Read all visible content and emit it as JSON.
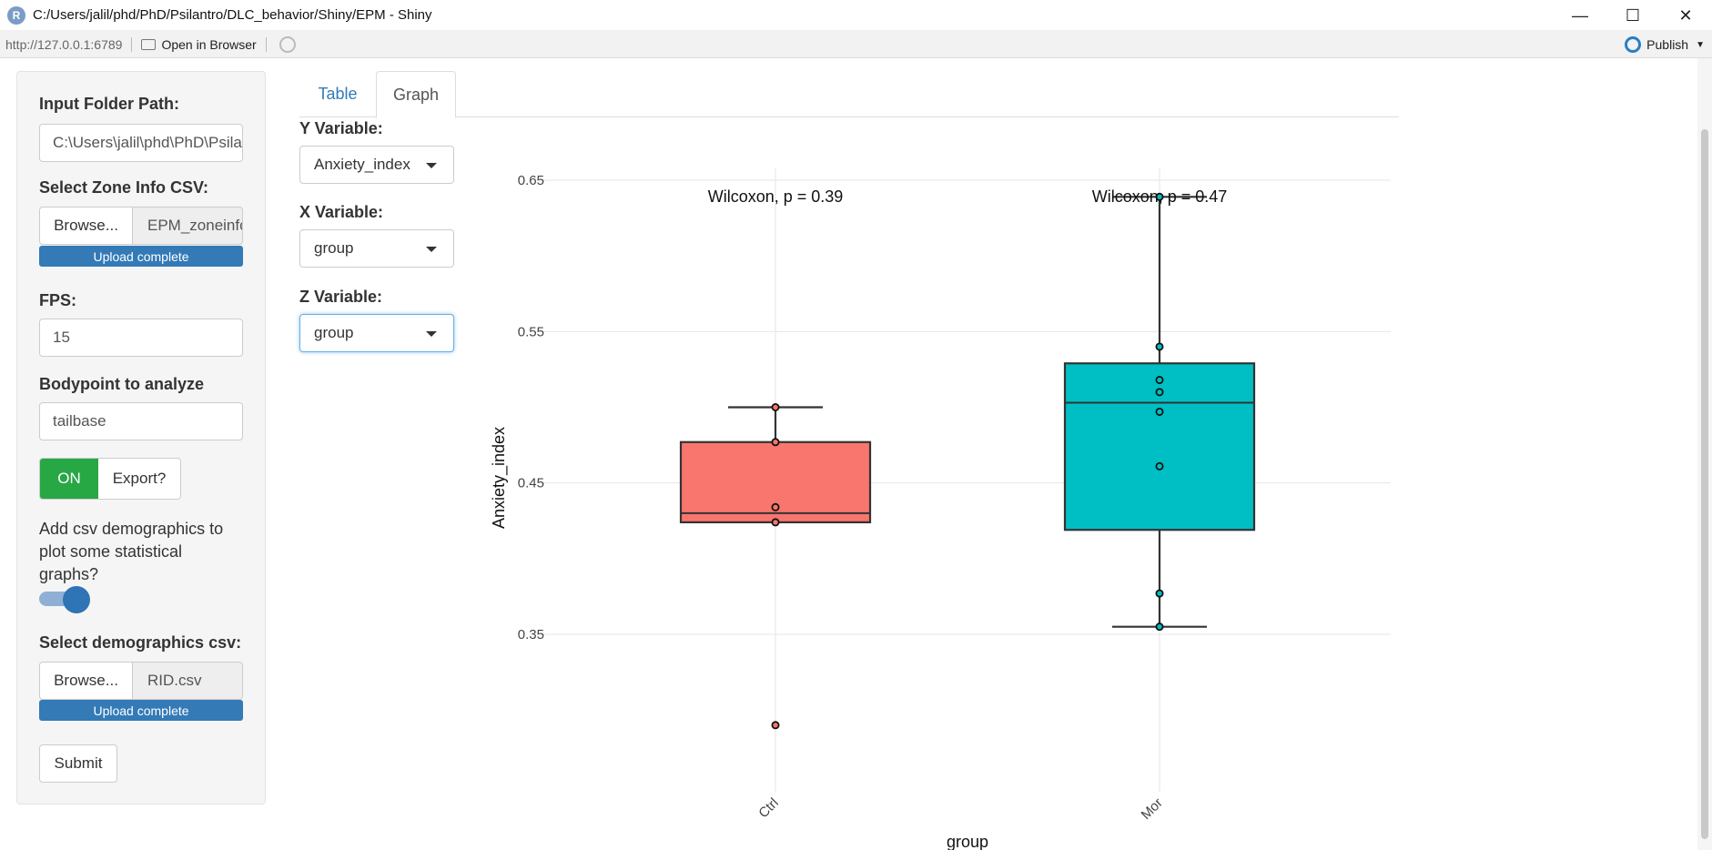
{
  "window": {
    "title": "C:/Users/jalil/phd/PhD/Psilantro/DLC_behavior/Shiny/EPM - Shiny",
    "logo_letter": "R"
  },
  "addressbar": {
    "url": "http://127.0.0.1:6789",
    "open_in_browser": "Open in Browser",
    "publish": "Publish"
  },
  "sidebar": {
    "folder_label": "Input Folder Path:",
    "folder_value": "C:\\Users\\jalil\\phd\\PhD\\Psilantro\\DLC_behavior",
    "zone_label": "Select Zone Info CSV:",
    "zone_browse": "Browse...",
    "zone_file": "EPM_zoneinfo.csv",
    "zone_progress": "Upload complete",
    "fps_label": "FPS:",
    "fps_value": "15",
    "bodypoint_label": "Bodypoint to analyze",
    "bodypoint_value": "tailbase",
    "switch_on": "ON",
    "switch_off": "Export?",
    "demo_text": "Add csv demographics to plot some statistical graphs?",
    "demo_label": "Select demographics csv:",
    "demo_browse": "Browse...",
    "demo_file": "RID.csv",
    "demo_progress": "Upload complete",
    "submit": "Submit"
  },
  "tabs": [
    {
      "label": "Table"
    },
    {
      "label": "Graph"
    }
  ],
  "selectors": {
    "y_label": "Y Variable:",
    "y_value": "Anxiety_index",
    "x_label": "X Variable:",
    "x_value": "group",
    "z_label": "Z Variable:",
    "z_value": "group"
  },
  "colors": {
    "ctrl_fill": "#F8766D",
    "mor_fill": "#00BFC4",
    "primary": "#337ab7",
    "success": "#28a745"
  },
  "chart_data": {
    "type": "box",
    "xlabel": "group",
    "ylabel": "Anxiety_index",
    "ylim": [
      0.2685,
      0.658
    ],
    "yticks": [
      0.35,
      0.45,
      0.55,
      0.65
    ],
    "categories": [
      "Ctrl",
      "Mor"
    ],
    "series": [
      {
        "name": "Ctrl",
        "lower_whisker": 0.424,
        "q1": 0.424,
        "median": 0.43,
        "q3": 0.477,
        "upper_whisker": 0.5,
        "points": [
          0.5,
          0.477,
          0.434,
          0.424,
          0.29
        ],
        "annotation": "Wilcoxon, p = 0.39"
      },
      {
        "name": "Mor",
        "lower_whisker": 0.355,
        "q1": 0.419,
        "median": 0.503,
        "q3": 0.529,
        "upper_whisker": 0.639,
        "points": [
          0.639,
          0.54,
          0.518,
          0.51,
          0.497,
          0.461,
          0.377,
          0.355
        ],
        "annotation": "Wilcoxon, p = 0.47"
      }
    ]
  }
}
